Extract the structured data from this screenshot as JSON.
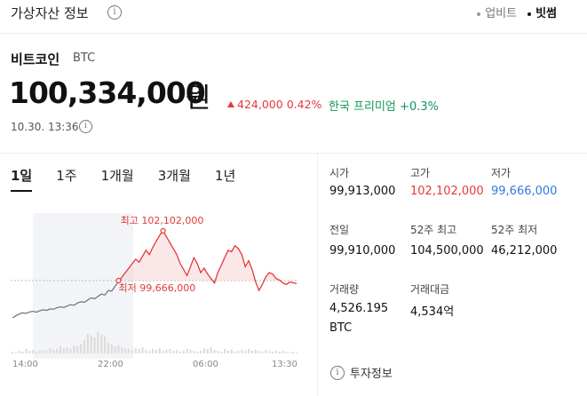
{
  "header": {
    "title": "가상자산 정보",
    "sources": [
      {
        "label": "업비트",
        "active": false
      },
      {
        "label": "빗썸",
        "active": true
      }
    ]
  },
  "coin": {
    "name": "비트코인",
    "symbol": "BTC",
    "price": "100,334,000",
    "unit": "원",
    "change_amount": "424,000",
    "change_percent": "0.42%",
    "premium_label": "한국 프리미엄",
    "premium_value": "+0.3%",
    "timestamp": "10.30. 13:36"
  },
  "periods": [
    "1일",
    "1주",
    "1개월",
    "3개월",
    "1년"
  ],
  "chart_data": {
    "type": "line",
    "x_ticks": [
      "14:00",
      "22:00",
      "06:00",
      "13:30"
    ],
    "high_label": "최고 102,102,000",
    "low_label": "최저 99,666,000",
    "series": [
      {
        "values": [
          99.18,
          99.25,
          99.31,
          99.35,
          99.33,
          99.38,
          99.4,
          99.37,
          99.42,
          99.45,
          99.43,
          99.48,
          99.47,
          99.52,
          99.55,
          99.53,
          99.58,
          99.62,
          99.6,
          99.68,
          99.72,
          99.7,
          99.78,
          99.85,
          99.82,
          99.9,
          99.98,
          99.95,
          100.1,
          100.08,
          100.25,
          100.4,
          100.55,
          100.7,
          100.85,
          101.0,
          101.15,
          101.05,
          101.25,
          101.45,
          101.3,
          101.55,
          101.75,
          101.95,
          102.1,
          101.9,
          101.7,
          101.5,
          101.3,
          101.0,
          100.8,
          100.6,
          100.9,
          101.2,
          101.0,
          100.7,
          100.85,
          100.65,
          100.5,
          100.35,
          100.7,
          100.95,
          101.2,
          101.45,
          101.4,
          101.6,
          101.5,
          101.3,
          100.9,
          101.1,
          100.8,
          100.4,
          100.1,
          100.3,
          100.55,
          100.7,
          100.65,
          100.5,
          100.45,
          100.35,
          100.3,
          100.38,
          100.36,
          100.33
        ]
      }
    ],
    "volume": [
      2,
      1,
      3,
      2,
      5,
      3,
      4,
      2,
      3,
      4,
      3,
      6,
      4,
      5,
      8,
      6,
      7,
      5,
      9,
      8,
      10,
      15,
      22,
      20,
      18,
      24,
      21,
      19,
      12,
      10,
      8,
      9,
      7,
      6,
      5,
      4,
      6,
      5,
      7,
      4,
      3,
      5,
      4,
      6,
      3,
      4,
      5,
      3,
      4,
      2,
      3,
      5,
      4,
      3,
      2,
      3,
      6,
      5,
      7,
      4,
      3,
      2,
      5,
      3,
      4,
      2,
      3,
      4,
      3,
      5,
      3,
      4,
      3,
      2,
      4,
      3,
      2,
      3,
      2,
      3,
      2,
      1,
      2,
      1
    ]
  },
  "stats": [
    {
      "label": "시가",
      "value": "99,913,000",
      "tone": ""
    },
    {
      "label": "고가",
      "value": "102,102,000",
      "tone": "up"
    },
    {
      "label": "저가",
      "value": "99,666,000",
      "tone": "down"
    },
    {
      "label": "전일",
      "value": "99,910,000",
      "tone": ""
    },
    {
      "label": "52주 최고",
      "value": "104,500,000",
      "tone": ""
    },
    {
      "label": "52주 최저",
      "value": "46,212,000",
      "tone": ""
    },
    {
      "label": "거래량",
      "value": "4,526.195",
      "value2": "BTC",
      "tone": ""
    },
    {
      "label": "거래대금",
      "value": "4,534억",
      "tone": ""
    }
  ],
  "invest_link": {
    "label": "투자정보",
    "icon": "info-icon"
  },
  "colors": {
    "up": "#e3393b",
    "down": "#3378e0",
    "premium": "#12965c"
  }
}
